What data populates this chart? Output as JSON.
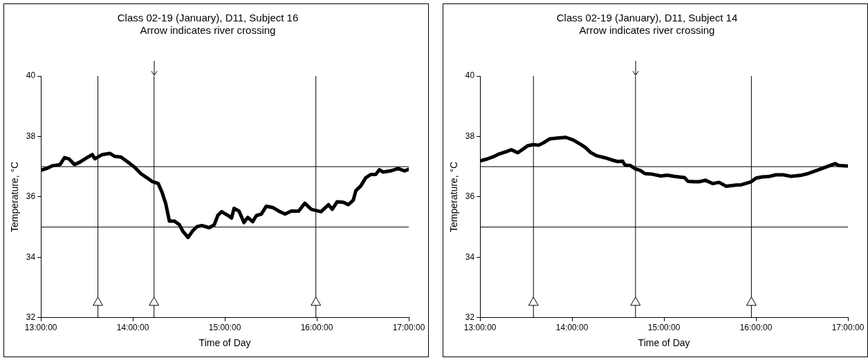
{
  "chart_data": [
    {
      "type": "line",
      "title": "Class 02-19 (January), D11, Subject 16",
      "subtitle": "Arrow indicates river crossing",
      "xlabel": "Time of Day",
      "ylabel": "Temperature, °C",
      "xlim": [
        13,
        17
      ],
      "xticks": [
        {
          "value": 13,
          "label": "13:00:00"
        },
        {
          "value": 14,
          "label": "14:00:00"
        },
        {
          "value": 15,
          "label": "15:00:00"
        },
        {
          "value": 16,
          "label": "16:00:00"
        },
        {
          "value": 17,
          "label": "17:00:00"
        }
      ],
      "ylim": [
        32,
        40
      ],
      "yticks": [
        32,
        34,
        36,
        38,
        40
      ],
      "grid": false,
      "legend": false,
      "ref_lines": [
        {
          "axis": "y",
          "value": 37,
          "color": "#000000"
        },
        {
          "axis": "y",
          "value": 35,
          "color": "#000000"
        },
        {
          "axis": "x",
          "value": 13.62,
          "color": "#000000"
        },
        {
          "axis": "x",
          "value": 14.23,
          "color": "#000000"
        },
        {
          "axis": "x",
          "value": 15.99,
          "color": "#000000"
        }
      ],
      "series": [
        {
          "color": "#000000",
          "marker": "none",
          "x": [
            13.0,
            13.073,
            13.127,
            13.208,
            13.257,
            13.303,
            13.365,
            13.424,
            13.492,
            13.559,
            13.586,
            13.668,
            13.749,
            13.803,
            13.87,
            13.938,
            14.019,
            14.086,
            14.154,
            14.208,
            14.276,
            14.316,
            14.357,
            14.397,
            14.451,
            14.505,
            14.546,
            14.6,
            14.654,
            14.695,
            14.749,
            14.83,
            14.884,
            14.924,
            14.965,
            15.032,
            15.073,
            15.1,
            15.154,
            15.208,
            15.249,
            15.303,
            15.343,
            15.397,
            15.451,
            15.519,
            15.586,
            15.654,
            15.722,
            15.803,
            15.87,
            15.938,
            16.046,
            16.127,
            16.168,
            16.222,
            16.289,
            16.343,
            16.397,
            16.424,
            16.478,
            16.532,
            16.586,
            16.641,
            16.681,
            16.722,
            16.803,
            16.884,
            16.951,
            17.0
          ],
          "values": [
            36.88,
            36.95,
            37.03,
            37.07,
            37.3,
            37.26,
            37.07,
            37.15,
            37.28,
            37.4,
            37.26,
            37.4,
            37.44,
            37.34,
            37.32,
            37.17,
            36.98,
            36.77,
            36.63,
            36.51,
            36.44,
            36.16,
            35.78,
            35.2,
            35.2,
            35.08,
            34.85,
            34.66,
            34.89,
            35.01,
            35.05,
            34.98,
            35.07,
            35.39,
            35.51,
            35.39,
            35.3,
            35.62,
            35.53,
            35.15,
            35.32,
            35.18,
            35.38,
            35.43,
            35.69,
            35.65,
            35.53,
            35.43,
            35.53,
            35.53,
            35.79,
            35.59,
            35.51,
            35.74,
            35.59,
            35.84,
            35.82,
            35.74,
            35.89,
            36.2,
            36.36,
            36.63,
            36.74,
            36.74,
            36.9,
            36.82,
            36.86,
            36.94,
            36.86,
            36.91
          ]
        },
        {
          "type": "scatter",
          "color": "#000000",
          "marker": "triangle",
          "x": [
            13.62,
            14.23,
            15.99
          ],
          "values": [
            32.5,
            32.5,
            32.5
          ]
        }
      ]
    },
    {
      "type": "line",
      "title": "Class 02-19 (January), D11, Subject 14",
      "subtitle": "Arrow indicates river crossing",
      "xlabel": "Time of Day",
      "ylabel": "Temperature, °C",
      "xlim": [
        13,
        17
      ],
      "xticks": [
        {
          "value": 13,
          "label": "13:00:00"
        },
        {
          "value": 14,
          "label": "14:00:00"
        },
        {
          "value": 15,
          "label": "15:00:00"
        },
        {
          "value": 16,
          "label": "16:00:00"
        },
        {
          "value": 17,
          "label": "17:00:00"
        }
      ],
      "ylim": [
        32,
        40
      ],
      "yticks": [
        32,
        34,
        36,
        38,
        40
      ],
      "grid": false,
      "legend": false,
      "ref_lines": [
        {
          "axis": "y",
          "value": 37,
          "color": "#000000"
        },
        {
          "axis": "y",
          "value": 35,
          "color": "#000000"
        },
        {
          "axis": "x",
          "value": 13.58,
          "color": "#000000"
        },
        {
          "axis": "x",
          "value": 14.69,
          "color": "#000000"
        },
        {
          "axis": "x",
          "value": 15.95,
          "color": "#000000"
        }
      ],
      "series": [
        {
          "color": "#000000",
          "marker": "none",
          "x": [
            13.0,
            13.073,
            13.153,
            13.207,
            13.287,
            13.341,
            13.408,
            13.462,
            13.516,
            13.578,
            13.637,
            13.69,
            13.758,
            13.825,
            13.932,
            14.013,
            14.093,
            14.147,
            14.201,
            14.268,
            14.362,
            14.443,
            14.496,
            14.55,
            14.577,
            14.631,
            14.692,
            14.738,
            14.792,
            14.872,
            14.966,
            15.034,
            15.114,
            15.222,
            15.262,
            15.329,
            15.383,
            15.45,
            15.531,
            15.598,
            15.678,
            15.786,
            15.84,
            15.947,
            16.001,
            16.068,
            16.135,
            16.216,
            16.296,
            16.377,
            16.484,
            16.565,
            16.646,
            16.753,
            16.86,
            16.901,
            17.0
          ],
          "values": [
            37.19,
            37.25,
            37.34,
            37.42,
            37.5,
            37.56,
            37.46,
            37.57,
            37.69,
            37.73,
            37.71,
            37.79,
            37.92,
            37.94,
            37.97,
            37.88,
            37.74,
            37.63,
            37.47,
            37.36,
            37.29,
            37.21,
            37.17,
            37.18,
            37.05,
            37.04,
            36.92,
            36.88,
            36.77,
            36.75,
            36.69,
            36.72,
            36.68,
            36.64,
            36.51,
            36.5,
            36.5,
            36.55,
            36.44,
            36.48,
            36.35,
            36.39,
            36.4,
            36.5,
            36.62,
            36.66,
            36.67,
            36.73,
            36.73,
            36.68,
            36.71,
            36.77,
            36.86,
            36.98,
            37.1,
            37.04,
            37.02
          ]
        },
        {
          "type": "scatter",
          "color": "#000000",
          "marker": "triangle",
          "x": [
            13.58,
            14.69,
            15.95
          ],
          "values": [
            32.5,
            32.5,
            32.5
          ]
        }
      ]
    }
  ]
}
